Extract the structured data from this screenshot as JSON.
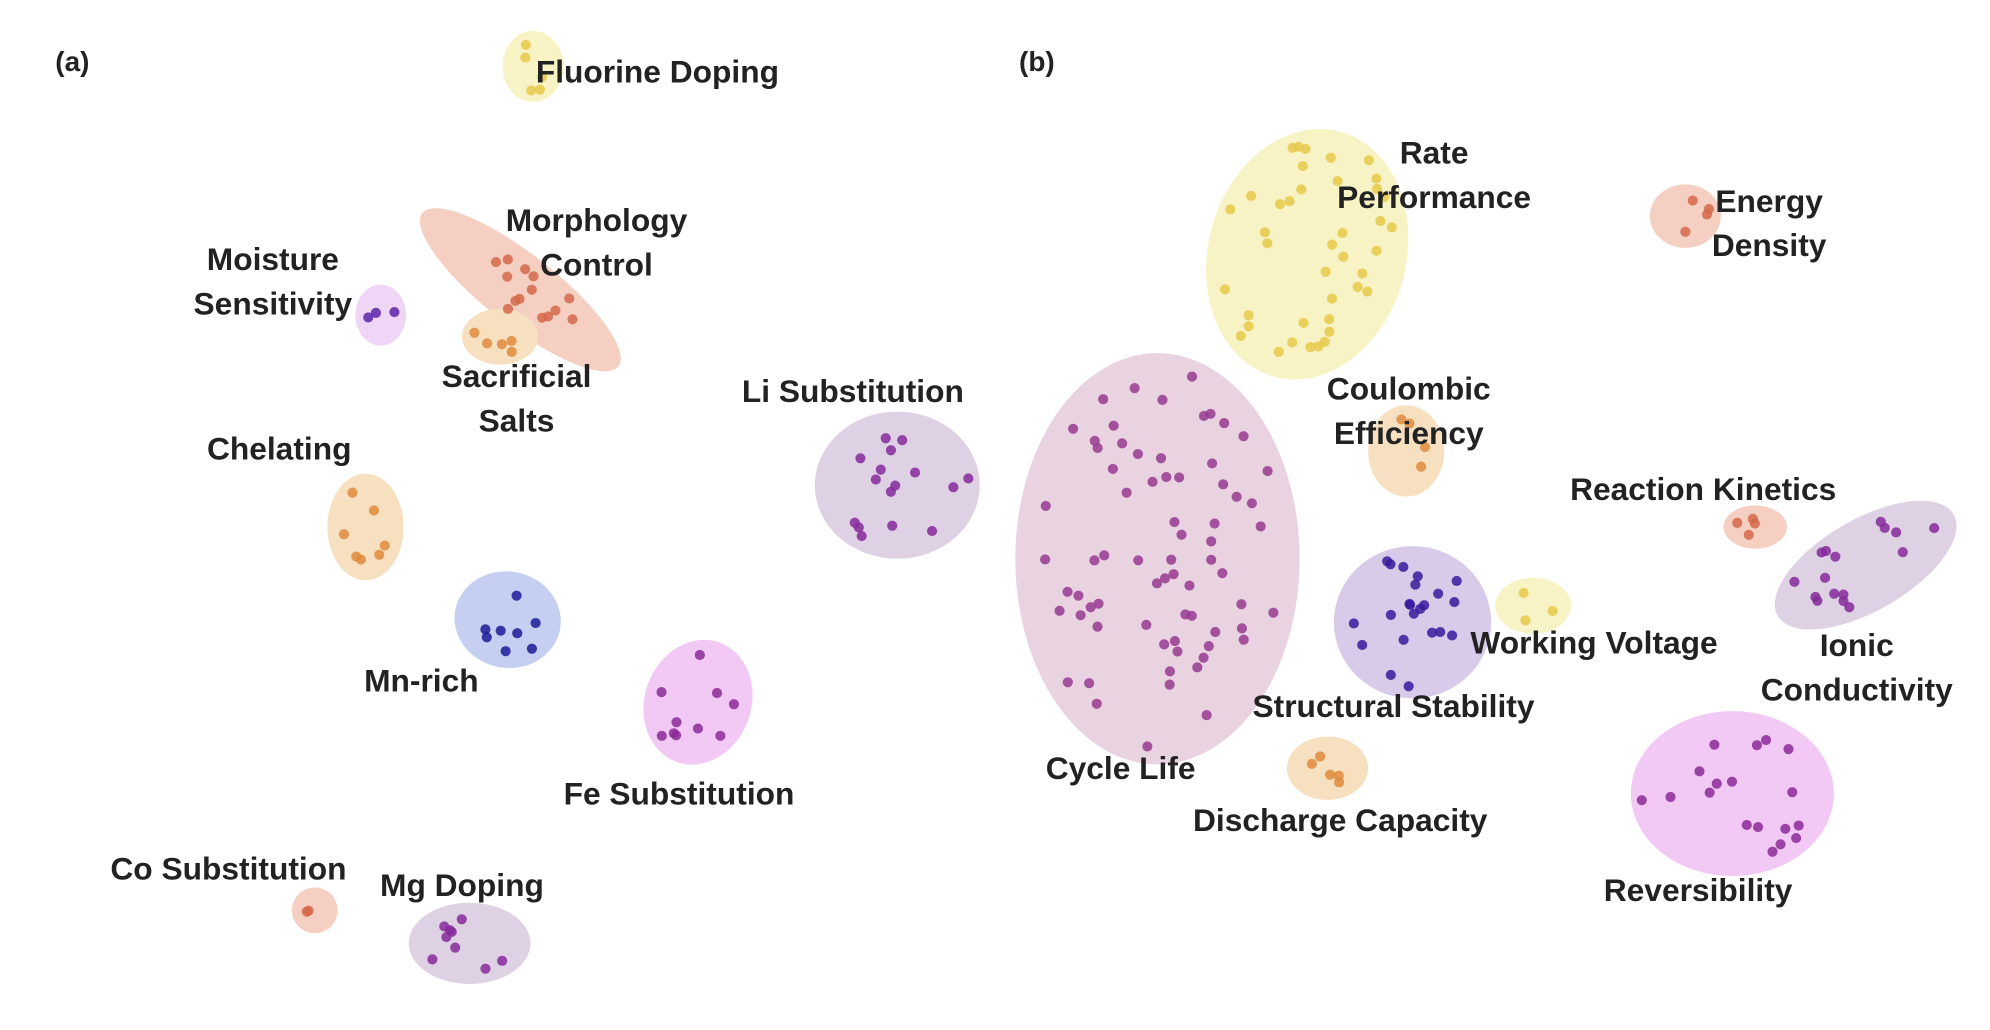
{
  "panels": [
    {
      "label": "(a)",
      "clusters": [
        {
          "label": [
            "Fluorine Doping"
          ]
        },
        {
          "label": [
            "Morphology",
            "Control"
          ]
        },
        {
          "label": [
            "Moisture",
            "Sensitivity"
          ]
        },
        {
          "label": [
            "Sacrificial",
            "Salts"
          ]
        },
        {
          "label": [
            "Chelating"
          ]
        },
        {
          "label": [
            "Li Substitution"
          ]
        },
        {
          "label": [
            "Mn-rich"
          ]
        },
        {
          "label": [
            "Fe Substitution"
          ]
        },
        {
          "label": [
            "Co Substitution"
          ]
        },
        {
          "label": [
            "Mg Doping"
          ]
        }
      ]
    },
    {
      "label": "(b)",
      "clusters": [
        {
          "label": [
            "Rate",
            "Performance"
          ]
        },
        {
          "label": [
            "Energy",
            "Density"
          ]
        },
        {
          "label": [
            "Cycle Life"
          ]
        },
        {
          "label": [
            "Coulombic",
            "Efficiency"
          ]
        },
        {
          "label": [
            "Reaction Kinetics"
          ]
        },
        {
          "label": [
            "Ionic",
            "Conductivity"
          ]
        },
        {
          "label": [
            "Structural Stability"
          ]
        },
        {
          "label": [
            "Working Voltage"
          ]
        },
        {
          "label": [
            "Discharge Capacity"
          ]
        },
        {
          "label": [
            "Reversibility"
          ]
        }
      ]
    }
  ]
}
